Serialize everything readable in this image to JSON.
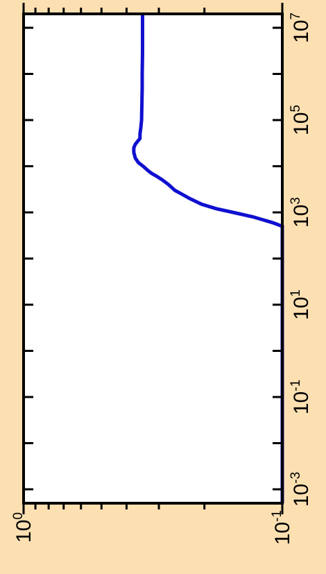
{
  "chart_data": {
    "type": "line",
    "orientation": "rotated-90-ccw",
    "x_scale": "log",
    "y_scale": "log",
    "xlim": [
      0.0005,
      20000000
    ],
    "ylim": [
      0.1,
      1.0
    ],
    "x_ticks": [
      {
        "value": 0.001,
        "base": "10",
        "exp": "-3"
      },
      {
        "value": 0.1,
        "base": "10",
        "exp": "-1"
      },
      {
        "value": 10,
        "base": "10",
        "exp": "1"
      },
      {
        "value": 1000,
        "base": "10",
        "exp": "3"
      },
      {
        "value": 100000,
        "base": "10",
        "exp": "5"
      },
      {
        "value": 10000000,
        "base": "10",
        "exp": "7"
      }
    ],
    "y_ticks": [
      {
        "value": 1.0,
        "base": "10",
        "exp": "0"
      },
      {
        "value": 0.1,
        "base": "10",
        "exp": "-1"
      }
    ],
    "series": [
      {
        "color": "#1010d0",
        "x": [
          0.0005,
          500,
          600,
          800,
          1000,
          1200,
          1500,
          2000,
          2500,
          3000,
          4000,
          5000,
          6000,
          7000,
          8000,
          10000,
          12000,
          15000,
          20000,
          25000,
          30000,
          40000,
          50000,
          70000,
          100000,
          200000,
          500000,
          1000000,
          3000000,
          10000000,
          20000000
        ],
        "y": [
          0.1,
          0.1,
          0.109,
          0.13,
          0.155,
          0.18,
          0.205,
          0.228,
          0.245,
          0.26,
          0.275,
          0.29,
          0.305,
          0.32,
          0.33,
          0.345,
          0.36,
          0.37,
          0.375,
          0.375,
          0.37,
          0.355,
          0.355,
          0.352,
          0.35,
          0.349,
          0.348,
          0.348,
          0.347,
          0.347,
          0.347
        ]
      }
    ],
    "title": "",
    "xlabel": "",
    "ylabel": "",
    "grid": false,
    "legend": "none"
  }
}
